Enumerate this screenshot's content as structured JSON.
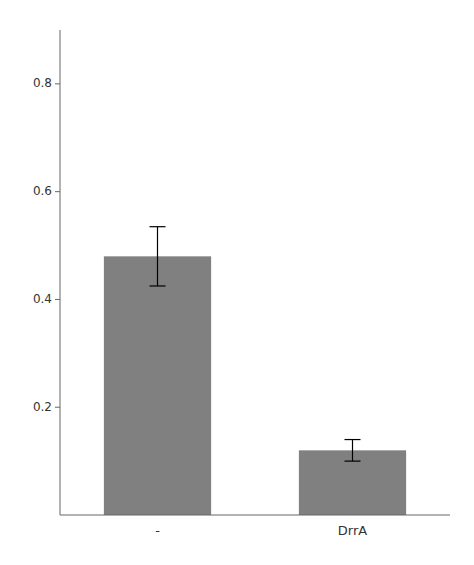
{
  "chart_data": {
    "type": "bar",
    "categories": [
      "-",
      "DrrA"
    ],
    "values": [
      0.48,
      0.12
    ],
    "errors": [
      0.055,
      0.02
    ],
    "color": "#808080",
    "ylim": [
      0,
      0.9
    ],
    "yticks": [
      0.2,
      0.4,
      0.6,
      0.8
    ]
  }
}
